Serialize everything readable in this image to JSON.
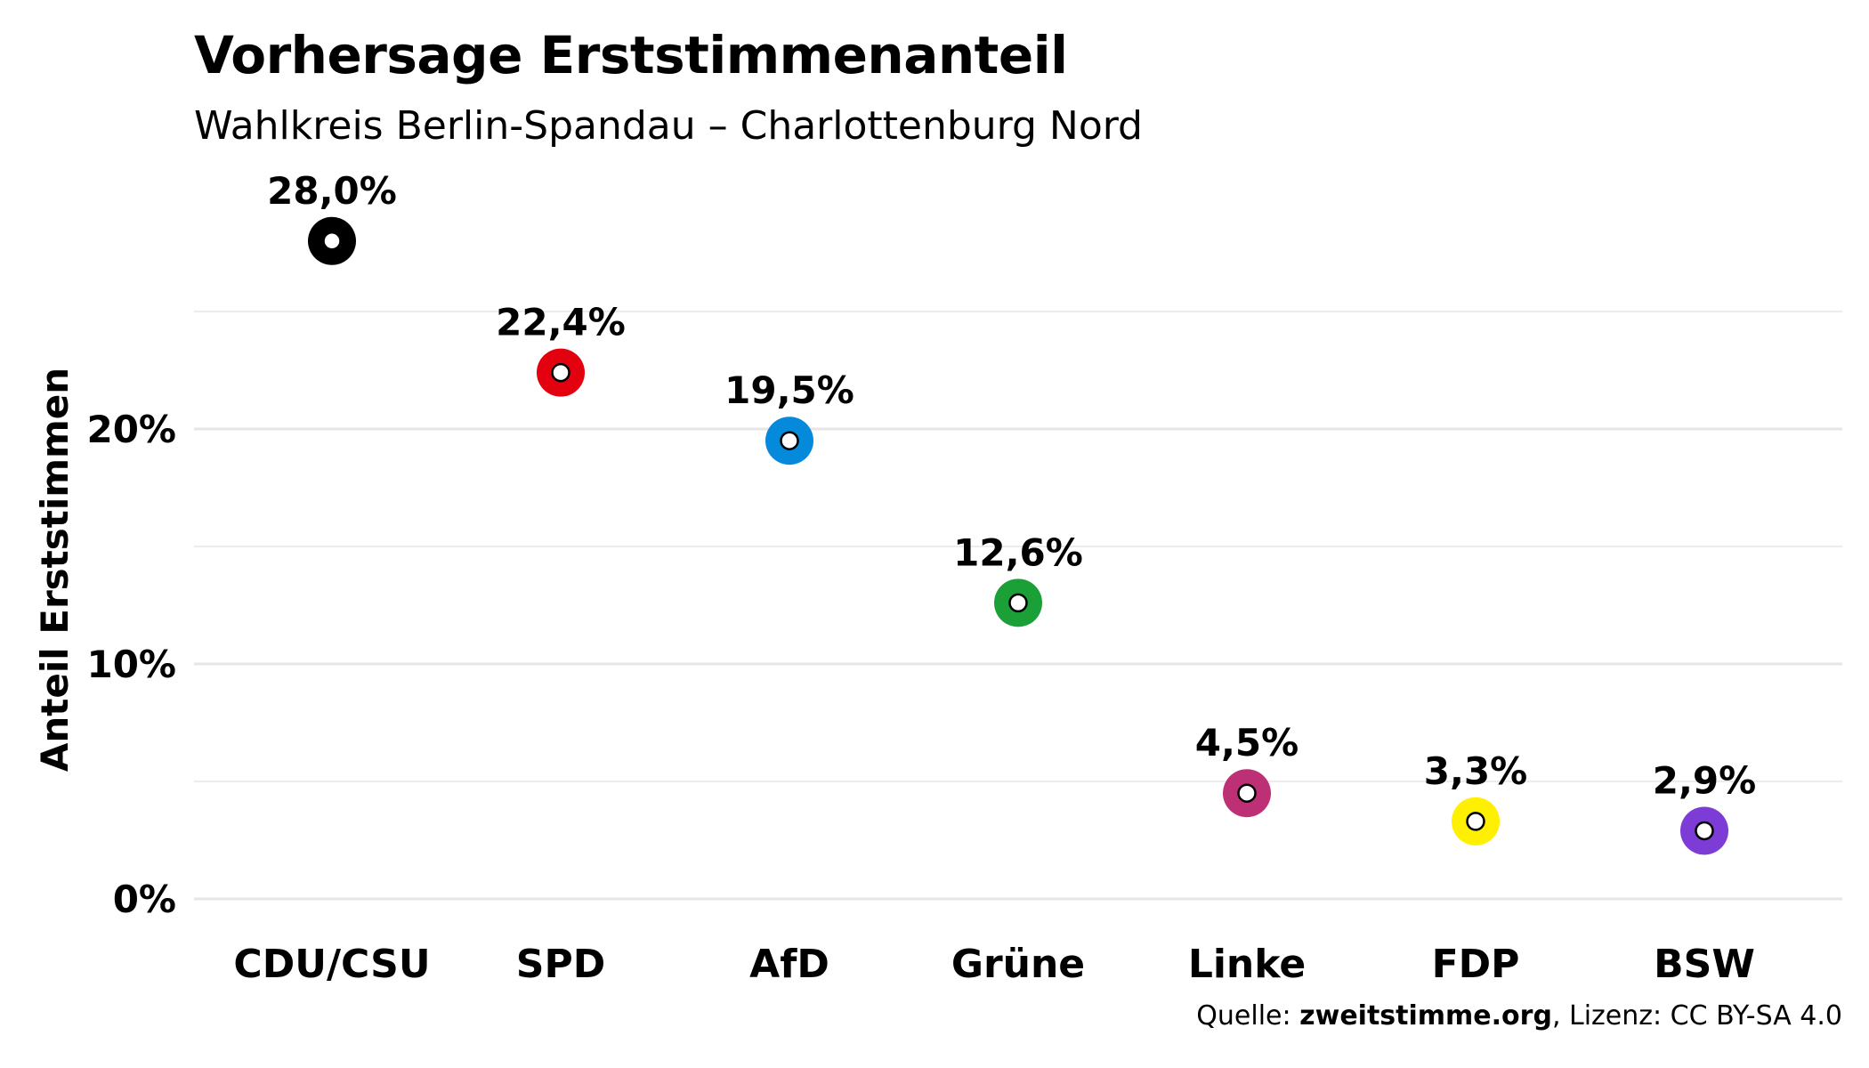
{
  "title": "Vorhersage Erststimmenanteil",
  "subtitle": "Wahlkreis Berlin-Spandau – Charlottenburg Nord",
  "caption": {
    "prefix": "Quelle: ",
    "source": "zweitstimme.org",
    "suffix": ", Lizenz: CC BY-SA 4.0"
  },
  "chart_data": {
    "type": "scatter",
    "ylabel": "Anteil Erststimmen",
    "ylim": [
      0,
      30
    ],
    "yticks": [
      {
        "value": 0,
        "label": "0%"
      },
      {
        "value": 10,
        "label": "10%"
      },
      {
        "value": 20,
        "label": "20%"
      }
    ],
    "minor_gridlines": [
      5,
      15,
      25
    ],
    "grid": true,
    "categories": [
      "CDU/CSU",
      "SPD",
      "AfD",
      "Grüne",
      "Linke",
      "FDP",
      "BSW"
    ],
    "values": [
      28.0,
      22.4,
      19.5,
      12.6,
      4.5,
      3.3,
      2.9
    ],
    "labels": [
      "28,0%",
      "22,4%",
      "19,5%",
      "12,6%",
      "4,5%",
      "3,3%",
      "2,9%"
    ],
    "colors": [
      "#000000",
      "#E3000F",
      "#0489DB",
      "#1AA037",
      "#BE3075",
      "#FFEF00",
      "#7D3CD6"
    ]
  }
}
